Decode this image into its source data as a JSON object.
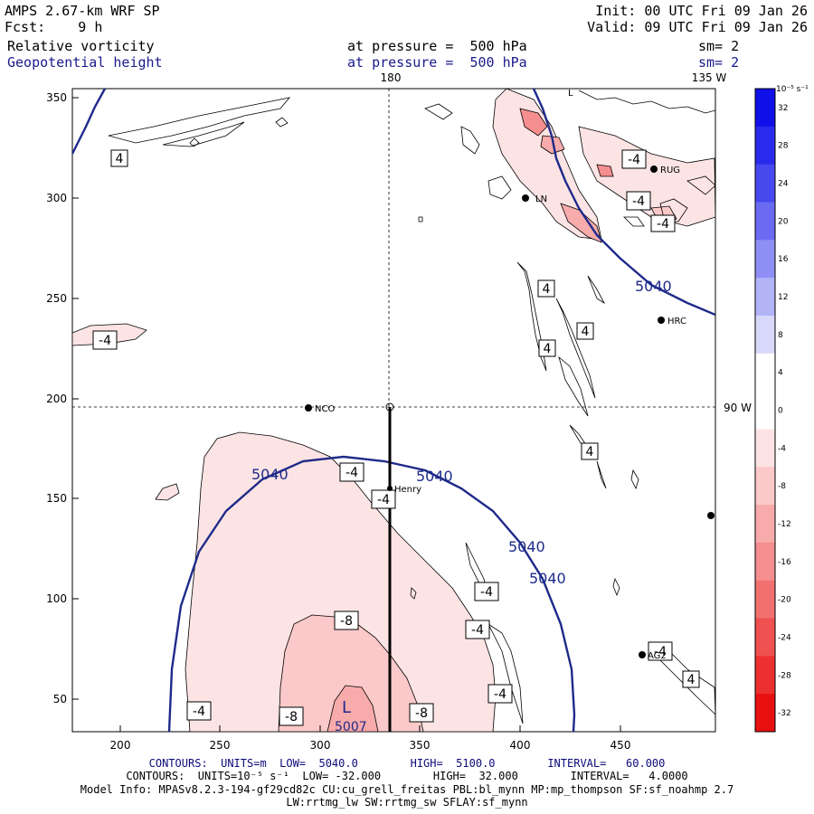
{
  "header": {
    "model": "AMPS 2.67-km WRF SP",
    "fcst_label": "Fcst:",
    "fcst_value": "9 h",
    "init": "Init: 00 UTC Fri 09 Jan 26",
    "valid": "Valid: 09 UTC Fri 09 Jan 26",
    "field1": "Relative vorticity",
    "field2": "Geopotential height",
    "level1": "at pressure =  500 hPa",
    "level2": "at pressure =  500 hPa",
    "sm1": "sm= 2",
    "sm2": "sm= 2"
  },
  "map": {
    "lon_180": "180",
    "lon_135w": "135 W",
    "lon_90w": "90 W",
    "x_ticks": [
      "200",
      "250",
      "300",
      "350",
      "400",
      "450"
    ],
    "y_ticks": [
      "350",
      "300",
      "250",
      "200",
      "150",
      "100",
      "50"
    ],
    "contour_labels_vort": [
      "4",
      "-4",
      "-4",
      "-4",
      "4",
      "4",
      "4",
      "4",
      "-4",
      "-4",
      "-4",
      "-8",
      "-4",
      "-4",
      "-4",
      "-8",
      "-8",
      "-4",
      "4",
      "-4"
    ],
    "contour_labels_height": [
      "5040",
      "5040",
      "5040",
      "5040",
      "5040"
    ],
    "low_label": "L",
    "low_value": "5007",
    "stations": [
      "RUG",
      "LN",
      "HRC",
      "NCO",
      "Henry",
      "AG2",
      "L"
    ]
  },
  "colorbar": {
    "top_label": "10⁻⁵ s⁻¹",
    "ticks": [
      "32",
      "28",
      "24",
      "20",
      "16",
      "12",
      "8",
      "4",
      "0",
      "-4",
      "-8",
      "-12",
      "-16",
      "-20",
      "-24",
      "-28",
      "-32"
    ],
    "colors": [
      "#1010e8",
      "#2a2aec",
      "#4848ef",
      "#6a6af2",
      "#8e8ef5",
      "#b3b3f8",
      "#d8d8fb",
      "#ffffff",
      "#ffffff",
      "#fde4e4",
      "#fbc9c9",
      "#f8abab",
      "#f58e8e",
      "#f27070",
      "#ef5050",
      "#ec3030",
      "#e81010"
    ]
  },
  "footer": {
    "line1": "CONTOURS:  UNITS=m  LOW=  5040.0        HIGH=  5100.0        INTERVAL=   60.000",
    "line2": "CONTOURS:  UNITS=10⁻⁵ s⁻¹  LOW= -32.000        HIGH=  32.000        INTERVAL=   4.0000",
    "line3": "Model Info: MPASv8.2.3-194-gf29cd82c CU:cu_grell_freitas PBL:bl_mynn MP:mp_thompson SF:sf_noahmp 2.7",
    "line4": "LW:rrtmg_lw SW:rrtmg_sw SFLAY:sf_mynn"
  }
}
